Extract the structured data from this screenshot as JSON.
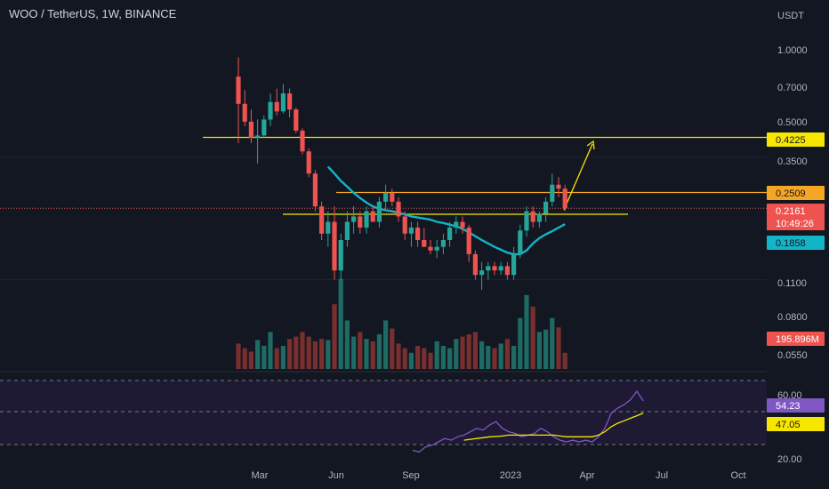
{
  "title": "WOO / TetherUS, 1W, BINANCE",
  "colors": {
    "background": "#131722",
    "up": "#26a69a",
    "down": "#ef5350",
    "vol_up": "#1d6b63",
    "vol_down": "#7a2f2e",
    "ma": "#12b4c6",
    "level": "#f7e600",
    "level_orange": "#f5a623",
    "rsi": "#7e57c2",
    "rsi_ma": "#f7e600",
    "rsi_band": "#1e1a33",
    "price_line": "#ef5350"
  },
  "chart_data": {
    "type": "candlestick",
    "title": "WOO / TetherUS, 1W, BINANCE",
    "y_unit": "USDT",
    "y_scale": "log",
    "y_ticks": [
      "1.0000",
      "0.7000",
      "0.5000",
      "0.3500",
      "0.1100",
      "0.0800",
      "0.0550"
    ],
    "x_ticks": [
      "Mar",
      "Jun",
      "Sep",
      "2023",
      "Apr",
      "Jul",
      "Oct"
    ],
    "candles": [
      [
        0.75,
        0.9,
        0.4,
        0.58
      ],
      [
        0.58,
        0.66,
        0.47,
        0.49
      ],
      [
        0.49,
        0.55,
        0.4,
        0.42
      ],
      [
        0.42,
        0.5,
        0.33,
        0.43
      ],
      [
        0.43,
        0.52,
        0.42,
        0.5
      ],
      [
        0.5,
        0.64,
        0.47,
        0.59
      ],
      [
        0.59,
        0.67,
        0.52,
        0.54
      ],
      [
        0.54,
        0.7,
        0.53,
        0.64
      ],
      [
        0.64,
        0.67,
        0.51,
        0.55
      ],
      [
        0.55,
        0.56,
        0.44,
        0.45
      ],
      [
        0.45,
        0.46,
        0.36,
        0.37
      ],
      [
        0.37,
        0.38,
        0.29,
        0.3
      ],
      [
        0.3,
        0.31,
        0.21,
        0.22
      ],
      [
        0.22,
        0.23,
        0.16,
        0.17
      ],
      [
        0.17,
        0.21,
        0.15,
        0.19
      ],
      [
        0.19,
        0.22,
        0.11,
        0.12
      ],
      [
        0.12,
        0.17,
        0.11,
        0.16
      ],
      [
        0.16,
        0.21,
        0.15,
        0.19
      ],
      [
        0.19,
        0.22,
        0.17,
        0.2
      ],
      [
        0.2,
        0.21,
        0.17,
        0.18
      ],
      [
        0.18,
        0.22,
        0.17,
        0.21
      ],
      [
        0.21,
        0.22,
        0.19,
        0.19
      ],
      [
        0.19,
        0.24,
        0.18,
        0.23
      ],
      [
        0.23,
        0.27,
        0.21,
        0.25
      ],
      [
        0.25,
        0.26,
        0.22,
        0.23
      ],
      [
        0.23,
        0.24,
        0.19,
        0.2
      ],
      [
        0.2,
        0.21,
        0.16,
        0.17
      ],
      [
        0.17,
        0.19,
        0.15,
        0.18
      ],
      [
        0.18,
        0.19,
        0.15,
        0.16
      ],
      [
        0.16,
        0.18,
        0.15,
        0.15
      ],
      [
        0.15,
        0.16,
        0.14,
        0.145
      ],
      [
        0.145,
        0.16,
        0.135,
        0.15
      ],
      [
        0.15,
        0.17,
        0.14,
        0.16
      ],
      [
        0.16,
        0.19,
        0.15,
        0.18
      ],
      [
        0.18,
        0.2,
        0.17,
        0.19
      ],
      [
        0.19,
        0.2,
        0.17,
        0.18
      ],
      [
        0.18,
        0.185,
        0.13,
        0.14
      ],
      [
        0.14,
        0.145,
        0.11,
        0.115
      ],
      [
        0.115,
        0.13,
        0.1,
        0.12
      ],
      [
        0.12,
        0.13,
        0.11,
        0.125
      ],
      [
        0.125,
        0.13,
        0.115,
        0.12
      ],
      [
        0.12,
        0.13,
        0.115,
        0.125
      ],
      [
        0.125,
        0.13,
        0.11,
        0.115
      ],
      [
        0.115,
        0.15,
        0.11,
        0.14
      ],
      [
        0.14,
        0.185,
        0.135,
        0.175
      ],
      [
        0.175,
        0.22,
        0.165,
        0.21
      ],
      [
        0.21,
        0.22,
        0.18,
        0.19
      ],
      [
        0.19,
        0.21,
        0.18,
        0.205
      ],
      [
        0.205,
        0.24,
        0.19,
        0.23
      ],
      [
        0.23,
        0.3,
        0.22,
        0.27
      ],
      [
        0.27,
        0.29,
        0.24,
        0.26
      ],
      [
        0.26,
        0.27,
        0.21,
        0.2161
      ]
    ],
    "volume": [
      22,
      18,
      15,
      25,
      20,
      32,
      18,
      20,
      26,
      28,
      32,
      28,
      24,
      26,
      25,
      56,
      78,
      42,
      28,
      32,
      26,
      24,
      30,
      42,
      35,
      22,
      18,
      14,
      20,
      18,
      14,
      24,
      20,
      18,
      26,
      28,
      30,
      32,
      24,
      20,
      18,
      22,
      26,
      20,
      44,
      64,
      54,
      32,
      34,
      44,
      36,
      14
    ],
    "ma": [
      null,
      null,
      null,
      null,
      null,
      null,
      null,
      null,
      null,
      null,
      null,
      null,
      null,
      null,
      0.32,
      0.3,
      0.28,
      0.265,
      0.25,
      0.238,
      0.228,
      0.22,
      0.215,
      0.212,
      0.21,
      0.207,
      0.204,
      0.2,
      0.198,
      0.196,
      0.194,
      0.19,
      0.188,
      0.185,
      0.182,
      0.178,
      0.172,
      0.166,
      0.16,
      0.155,
      0.15,
      0.146,
      0.142,
      0.14,
      0.14,
      0.145,
      0.155,
      0.163,
      0.169,
      0.174,
      0.18,
      0.1858
    ],
    "levels": [
      {
        "value": 0.4225,
        "label": "0.4225",
        "color": "yellow"
      },
      {
        "value": 0.2509,
        "label": "0.2509",
        "color": "orange"
      },
      {
        "value": 0.2161,
        "label": "0.2161",
        "color": "red",
        "countdown": "10:49:26"
      },
      {
        "value": 0.1858,
        "label": "0.1858",
        "color": "cyan"
      }
    ],
    "volume_label": "195.896M",
    "rsi": {
      "ticks": [
        "60.00",
        "20.00"
      ],
      "values": [
        null,
        null,
        null,
        null,
        null,
        null,
        null,
        null,
        null,
        null,
        null,
        null,
        null,
        null,
        null,
        25,
        24,
        27,
        28,
        30,
        32,
        31,
        33,
        34,
        36,
        38,
        37,
        40,
        42,
        38,
        36,
        35,
        33,
        34,
        35,
        38,
        36,
        33,
        31,
        30,
        31,
        30,
        31,
        30,
        33,
        38,
        47,
        50,
        52,
        55,
        60,
        54.23
      ],
      "ma": [
        null,
        null,
        null,
        null,
        null,
        null,
        null,
        null,
        null,
        null,
        null,
        null,
        null,
        null,
        null,
        null,
        null,
        null,
        null,
        null,
        null,
        null,
        null,
        31,
        31.5,
        32,
        32.5,
        33,
        33.2,
        33.5,
        34,
        34,
        34,
        34,
        34,
        34,
        34,
        34,
        33.5,
        33,
        33,
        33,
        33,
        33,
        34,
        36,
        39,
        41,
        42.5,
        44,
        45.5,
        47.05
      ],
      "current": "54.23",
      "ma_current": "47.05",
      "ylim": [
        15,
        70
      ],
      "band": [
        30,
        70
      ]
    }
  }
}
